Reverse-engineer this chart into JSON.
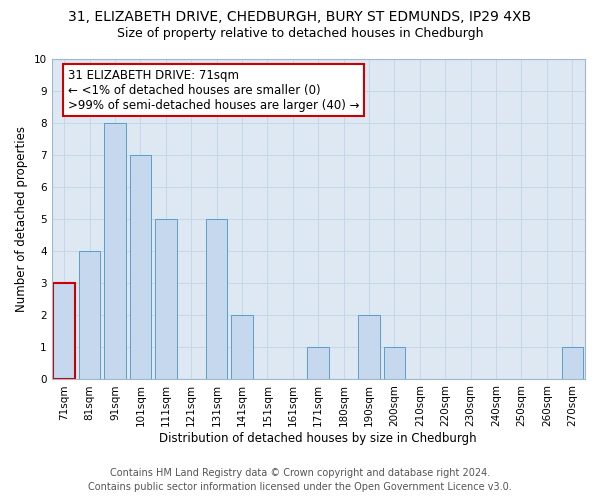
{
  "title_line1": "31, ELIZABETH DRIVE, CHEDBURGH, BURY ST EDMUNDS, IP29 4XB",
  "title_line2": "Size of property relative to detached houses in Chedburgh",
  "xlabel": "Distribution of detached houses by size in Chedburgh",
  "ylabel": "Number of detached properties",
  "categories": [
    "71sqm",
    "81sqm",
    "91sqm",
    "101sqm",
    "111sqm",
    "121sqm",
    "131sqm",
    "141sqm",
    "151sqm",
    "161sqm",
    "171sqm",
    "180sqm",
    "190sqm",
    "200sqm",
    "210sqm",
    "220sqm",
    "230sqm",
    "240sqm",
    "250sqm",
    "260sqm",
    "270sqm"
  ],
  "values": [
    3,
    4,
    8,
    7,
    5,
    0,
    5,
    2,
    0,
    0,
    1,
    0,
    2,
    1,
    0,
    0,
    0,
    0,
    0,
    0,
    1
  ],
  "bar_color": "#c5d8ed",
  "bar_edge_color": "#5a9fc9",
  "highlight_bar_index": 0,
  "highlight_edge_color": "#cc0000",
  "annotation_box_text": "31 ELIZABETH DRIVE: 71sqm\n← <1% of detached houses are smaller (0)\n>99% of semi-detached houses are larger (40) →",
  "annotation_box_edge_color": "#cc0000",
  "annotation_box_fill": "#ffffff",
  "ylim": [
    0,
    10
  ],
  "yticks": [
    0,
    1,
    2,
    3,
    4,
    5,
    6,
    7,
    8,
    9,
    10
  ],
  "grid_color": "#c8d8e8",
  "plot_bg_color": "#dde8f3",
  "fig_bg_color": "#ffffff",
  "footer_line1": "Contains HM Land Registry data © Crown copyright and database right 2024.",
  "footer_line2": "Contains public sector information licensed under the Open Government Licence v3.0.",
  "title_fontsize": 10,
  "subtitle_fontsize": 9,
  "axis_label_fontsize": 8.5,
  "tick_fontsize": 7.5,
  "annotation_fontsize": 8.5,
  "footer_fontsize": 7
}
